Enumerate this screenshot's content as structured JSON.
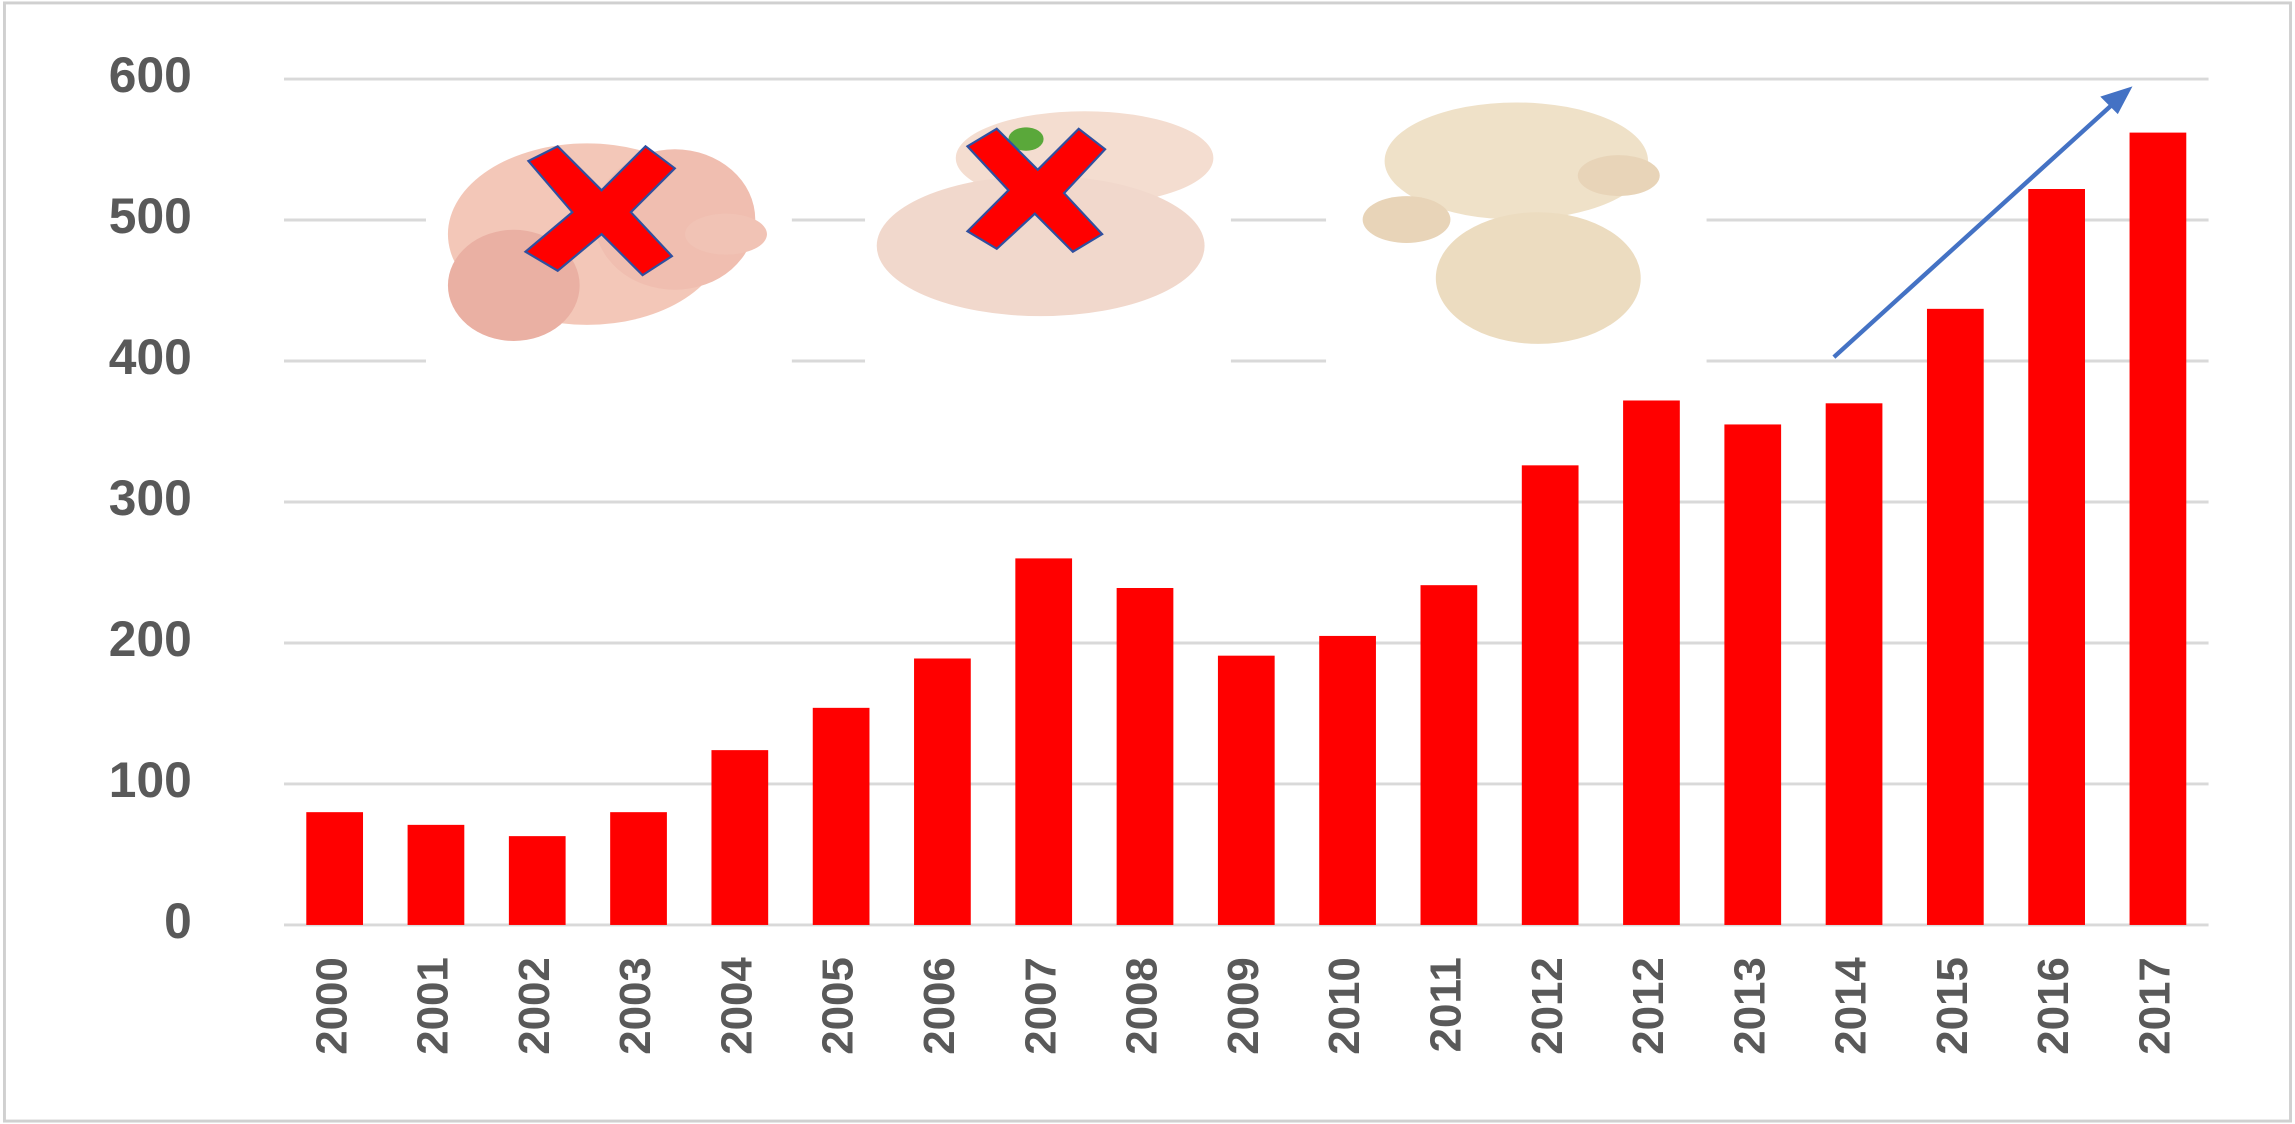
{
  "chart_data": {
    "type": "bar",
    "categories": [
      "2000",
      "2001",
      "2002",
      "2003",
      "2004",
      "2005",
      "2006",
      "2007",
      "2008",
      "2009",
      "2010",
      "2011",
      "2012",
      "2012",
      "2013",
      "2014",
      "2015",
      "2016",
      "2017"
    ],
    "values": [
      80,
      71,
      63,
      80,
      124,
      154,
      189,
      260,
      239,
      191,
      205,
      241,
      326,
      372,
      355,
      370,
      437,
      522,
      562
    ],
    "color": "#ff0000",
    "ylim": [
      0,
      600
    ],
    "yticks": [
      0,
      100,
      200,
      300,
      400,
      500,
      600
    ],
    "grid": true
  }
}
